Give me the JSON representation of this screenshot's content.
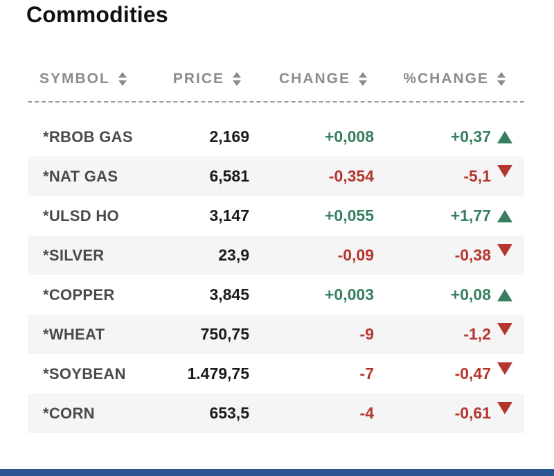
{
  "title": "Commodities",
  "colors": {
    "positive": "#377f5f",
    "negative": "#b5362f",
    "header_text": "#8c8c8c",
    "symbol_text": "#4a4a4a",
    "price_text": "#1b1b1b",
    "row_stripe": "#f5f5f6",
    "accent_bar": "#2b5591",
    "dashed_separator": "#9a9a9a"
  },
  "table": {
    "columns": [
      {
        "label": "SYMBOL"
      },
      {
        "label": "PRICE"
      },
      {
        "label": "CHANGE"
      },
      {
        "label": "%CHANGE"
      }
    ],
    "rows": [
      {
        "symbol": "*RBOB GAS",
        "price": "2,169",
        "change": "+0,008",
        "pct_change": "+0,37",
        "trend": "up"
      },
      {
        "symbol": "*NAT GAS",
        "price": "6,581",
        "change": "-0,354",
        "pct_change": "-5,1",
        "trend": "down"
      },
      {
        "symbol": "*ULSD HO",
        "price": "3,147",
        "change": "+0,055",
        "pct_change": "+1,77",
        "trend": "up"
      },
      {
        "symbol": "*SILVER",
        "price": "23,9",
        "change": "-0,09",
        "pct_change": "-0,38",
        "trend": "down"
      },
      {
        "symbol": "*COPPER",
        "price": "3,845",
        "change": "+0,003",
        "pct_change": "+0,08",
        "trend": "up"
      },
      {
        "symbol": "*WHEAT",
        "price": "750,75",
        "change": "-9",
        "pct_change": "-1,2",
        "trend": "down"
      },
      {
        "symbol": "*SOYBEAN",
        "price": "1.479,75",
        "change": "-7",
        "pct_change": "-0,47",
        "trend": "down"
      },
      {
        "symbol": "*CORN",
        "price": "653,5",
        "change": "-4",
        "pct_change": "-0,61",
        "trend": "down"
      }
    ]
  }
}
